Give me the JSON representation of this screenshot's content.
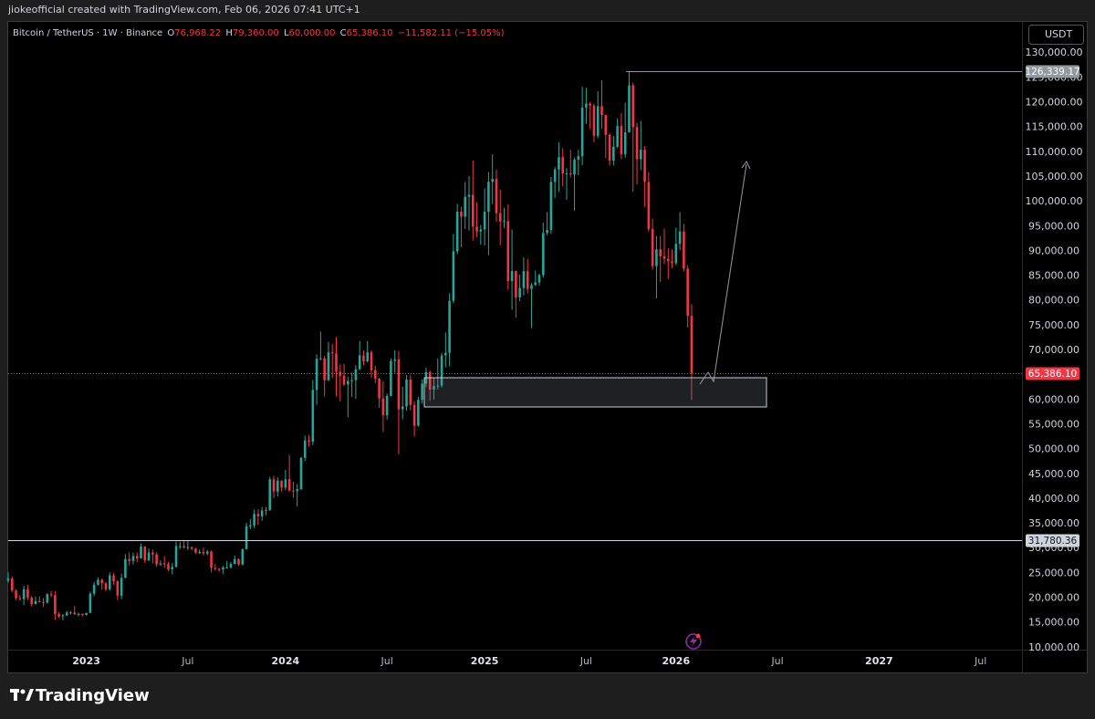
{
  "top_bar": {
    "credit": "jiokeofficial created with TradingView.com, Feb 06, 2026 07:41 UTC+1"
  },
  "legend": {
    "symbol": "Bitcoin / TetherUS · 1W · Binance",
    "o_label": "O",
    "open": "76,968.22",
    "h_label": "H",
    "high": "79,360.00",
    "l_label": "L",
    "low": "60,000.00",
    "c_label": "C",
    "close": "65,386.10",
    "change": "−11,582.11 (−15.05%)"
  },
  "currency": "USDT",
  "brand": "TradingView",
  "chart_data": {
    "type": "candlestick",
    "up_color": "#26a69a",
    "down_color": "#f23645",
    "grid": false,
    "xlim": [
      0,
      259.6
    ],
    "xticks": [
      {
        "value": 20,
        "label": "2023"
      },
      {
        "value": 46,
        "label": "Jul"
      },
      {
        "value": 71,
        "label": "2024"
      },
      {
        "value": 97,
        "label": "Jul"
      },
      {
        "value": 122,
        "label": "2025"
      },
      {
        "value": 148,
        "label": "Jul"
      },
      {
        "value": 171,
        "label": "2026"
      },
      {
        "value": 197,
        "label": "Jul"
      },
      {
        "value": 223,
        "label": "2027"
      },
      {
        "value": 249,
        "label": "Jul"
      }
    ],
    "ylim": [
      9600,
      136300
    ],
    "yticks": [
      {
        "value": 10000,
        "label": "10,000.00"
      },
      {
        "value": 15000,
        "label": "15,000.00"
      },
      {
        "value": 20000,
        "label": "20,000.00"
      },
      {
        "value": 25000,
        "label": "25,000.00"
      },
      {
        "value": 30000,
        "label": "30,000.00"
      },
      {
        "value": 35000,
        "label": "35,000.00"
      },
      {
        "value": 40000,
        "label": "40,000.00"
      },
      {
        "value": 45000,
        "label": "45,000.00"
      },
      {
        "value": 50000,
        "label": "50,000.00"
      },
      {
        "value": 55000,
        "label": "55,000.00"
      },
      {
        "value": 60000,
        "label": "60,000.00"
      },
      {
        "value": 65000,
        "label": "65,000.00"
      },
      {
        "value": 70000,
        "label": "70,000.00"
      },
      {
        "value": 75000,
        "label": "75,000.00"
      },
      {
        "value": 80000,
        "label": "80,000.00"
      },
      {
        "value": 85000,
        "label": "85,000.00"
      },
      {
        "value": 90000,
        "label": "90,000.00"
      },
      {
        "value": 95000,
        "label": "95,000.00"
      },
      {
        "value": 100000,
        "label": "100,000.00"
      },
      {
        "value": 105000,
        "label": "105,000.00"
      },
      {
        "value": 110000,
        "label": "110,000.00"
      },
      {
        "value": 115000,
        "label": "115,000.00"
      },
      {
        "value": 120000,
        "label": "120,000.00"
      },
      {
        "value": 125000,
        "label": "125,000.00"
      },
      {
        "value": 130000,
        "label": "130,000.00"
      }
    ],
    "price_lines": [
      {
        "value": 126339.17,
        "label": "126,339.17",
        "color": "#9598a1"
      },
      {
        "value": 65386.1,
        "label": "65,386.10",
        "color": "#f23645"
      },
      {
        "value": 31780.36,
        "label": "31,780.36",
        "color": "#d1d4dc"
      }
    ],
    "ohlc": [
      [
        23500,
        25200,
        23100,
        24000
      ],
      [
        24000,
        24400,
        21200,
        21500
      ],
      [
        21500,
        21800,
        19600,
        20000
      ],
      [
        20000,
        20600,
        19500,
        19800
      ],
      [
        19800,
        22500,
        18600,
        21800
      ],
      [
        21800,
        22700,
        19600,
        20100
      ],
      [
        20100,
        20400,
        18300,
        18800
      ],
      [
        18800,
        20300,
        18700,
        19400
      ],
      [
        19400,
        20400,
        19100,
        19200
      ],
      [
        19200,
        20000,
        18200,
        19100
      ],
      [
        19100,
        21000,
        18900,
        20800
      ],
      [
        20800,
        21500,
        20200,
        20600
      ],
      [
        20600,
        21400,
        15600,
        16800
      ],
      [
        16800,
        17200,
        16000,
        16300
      ],
      [
        16300,
        16800,
        15500,
        16500
      ],
      [
        16500,
        17400,
        16400,
        17100
      ],
      [
        17100,
        17400,
        16700,
        17100
      ],
      [
        17100,
        18400,
        16600,
        16800
      ],
      [
        16800,
        17100,
        16300,
        16800
      ],
      [
        16800,
        16900,
        16300,
        16600
      ],
      [
        16600,
        17100,
        16500,
        17000
      ],
      [
        17000,
        21300,
        17000,
        20900
      ],
      [
        20900,
        23300,
        20400,
        22700
      ],
      [
        22700,
        24200,
        22500,
        23700
      ],
      [
        23700,
        23900,
        21700,
        23000
      ],
      [
        23000,
        23300,
        21400,
        21800
      ],
      [
        21800,
        25200,
        21500,
        24600
      ],
      [
        24600,
        25100,
        22700,
        23400
      ],
      [
        23400,
        23600,
        19600,
        20500
      ],
      [
        20500,
        24900,
        19800,
        24100
      ],
      [
        24100,
        28900,
        24000,
        27900
      ],
      [
        27900,
        29200,
        26600,
        27500
      ],
      [
        27500,
        29200,
        26800,
        28500
      ],
      [
        28500,
        29200,
        27200,
        28000
      ],
      [
        28000,
        31000,
        28000,
        30400
      ],
      [
        30400,
        30500,
        27100,
        27600
      ],
      [
        27600,
        30000,
        27500,
        29200
      ],
      [
        29200,
        29800,
        27000,
        28800
      ],
      [
        28800,
        29300,
        26300,
        26800
      ],
      [
        26800,
        27600,
        26500,
        27000
      ],
      [
        27000,
        28400,
        26100,
        26900
      ],
      [
        26900,
        27300,
        25400,
        25800
      ],
      [
        25800,
        27100,
        24800,
        26300
      ],
      [
        26300,
        31400,
        26200,
        30500
      ],
      [
        30500,
        31400,
        29900,
        30500
      ],
      [
        30500,
        31800,
        30000,
        30200
      ],
      [
        30200,
        31600,
        29700,
        30300
      ],
      [
        30300,
        30400,
        29700,
        30000
      ],
      [
        30000,
        30100,
        28900,
        29200
      ],
      [
        29200,
        29800,
        28900,
        29300
      ],
      [
        29300,
        30200,
        28600,
        29000
      ],
      [
        29000,
        29700,
        28600,
        29400
      ],
      [
        29400,
        29600,
        25200,
        26100
      ],
      [
        26100,
        26900,
        25600,
        25900
      ],
      [
        25900,
        26100,
        25300,
        25800
      ],
      [
        25800,
        26500,
        24900,
        26200
      ],
      [
        26200,
        27500,
        26000,
        26200
      ],
      [
        26200,
        27300,
        26000,
        26900
      ],
      [
        26900,
        28600,
        26800,
        27900
      ],
      [
        27900,
        28000,
        26500,
        26800
      ],
      [
        26800,
        30000,
        26600,
        29900
      ],
      [
        29900,
        35200,
        29800,
        34500
      ],
      [
        34500,
        35900,
        33900,
        34700
      ],
      [
        34700,
        37900,
        34100,
        37000
      ],
      [
        37000,
        37900,
        34800,
        36500
      ],
      [
        36500,
        38400,
        35600,
        37700
      ],
      [
        37700,
        38400,
        36700,
        37800
      ],
      [
        37800,
        44500,
        37600,
        44000
      ],
      [
        44000,
        44700,
        40200,
        41500
      ],
      [
        41500,
        44400,
        40500,
        43700
      ],
      [
        43700,
        43800,
        41500,
        42300
      ],
      [
        42300,
        45900,
        41800,
        44000
      ],
      [
        44000,
        48900,
        41500,
        41700
      ],
      [
        41700,
        43500,
        40300,
        41600
      ],
      [
        41600,
        43000,
        38500,
        42000
      ],
      [
        42000,
        48500,
        41800,
        48300
      ],
      [
        48300,
        52800,
        47700,
        51800
      ],
      [
        51800,
        52900,
        50600,
        51600
      ],
      [
        51600,
        64000,
        50900,
        62000
      ],
      [
        62000,
        69200,
        59000,
        68300
      ],
      [
        68300,
        73800,
        68000,
        68400
      ],
      [
        68400,
        68900,
        60700,
        64000
      ],
      [
        64000,
        71700,
        63800,
        69600
      ],
      [
        69600,
        71300,
        64500,
        69400
      ],
      [
        69400,
        72700,
        60700,
        65700
      ],
      [
        65700,
        67200,
        59700,
        64900
      ],
      [
        64900,
        67300,
        62800,
        63100
      ],
      [
        63100,
        64700,
        56500,
        63800
      ],
      [
        63800,
        65500,
        60600,
        64000
      ],
      [
        64000,
        67000,
        60200,
        66200
      ],
      [
        66200,
        71900,
        66000,
        69000
      ],
      [
        69000,
        70000,
        67000,
        67800
      ],
      [
        67800,
        71900,
        67600,
        69600
      ],
      [
        69600,
        70000,
        64500,
        66000
      ],
      [
        66000,
        66900,
        63400,
        64300
      ],
      [
        64300,
        64500,
        58400,
        60300
      ],
      [
        60300,
        63800,
        53500,
        56900
      ],
      [
        56900,
        61300,
        56000,
        60800
      ],
      [
        60800,
        68400,
        60700,
        67900
      ],
      [
        67900,
        70000,
        65500,
        68200
      ],
      [
        68200,
        69900,
        49000,
        58100
      ],
      [
        58100,
        62700,
        56100,
        58700
      ],
      [
        58700,
        65000,
        57800,
        64100
      ],
      [
        64100,
        65000,
        57900,
        59000
      ],
      [
        59000,
        59800,
        52600,
        54800
      ],
      [
        54800,
        60700,
        54600,
        60000
      ],
      [
        60000,
        64100,
        59200,
        63300
      ],
      [
        63300,
        66500,
        62600,
        65600
      ],
      [
        65600,
        66000,
        59800,
        62100
      ],
      [
        62100,
        64400,
        60100,
        62800
      ],
      [
        62800,
        68400,
        62100,
        62900
      ],
      [
        62900,
        69500,
        62500,
        69000
      ],
      [
        69000,
        73600,
        66600,
        69500
      ],
      [
        69500,
        81500,
        66800,
        80000
      ],
      [
        80000,
        93500,
        79500,
        90000
      ],
      [
        90000,
        99600,
        89400,
        98000
      ],
      [
        98000,
        99000,
        90800,
        97000
      ],
      [
        97000,
        104000,
        94500,
        101000
      ],
      [
        101000,
        105200,
        94200,
        101400
      ],
      [
        101400,
        108300,
        92200,
        95000
      ],
      [
        95000,
        99900,
        92800,
        94000
      ],
      [
        94000,
        95300,
        91300,
        94400
      ],
      [
        94400,
        102700,
        91200,
        98000
      ],
      [
        98000,
        106000,
        89200,
        104000
      ],
      [
        104000,
        109600,
        99500,
        104600
      ],
      [
        104600,
        106500,
        96000,
        97700
      ],
      [
        97700,
        102500,
        91200,
        96000
      ],
      [
        96000,
        98800,
        94700,
        96100
      ],
      [
        96100,
        99500,
        82200,
        84000
      ],
      [
        84000,
        94400,
        78200,
        86000
      ],
      [
        86000,
        86100,
        76600,
        80700
      ],
      [
        80700,
        85300,
        79900,
        82600
      ],
      [
        82600,
        88800,
        81100,
        86000
      ],
      [
        86000,
        88500,
        81500,
        82400
      ],
      [
        82400,
        83600,
        74500,
        83200
      ],
      [
        83200,
        86100,
        83000,
        83700
      ],
      [
        83700,
        85500,
        83100,
        85200
      ],
      [
        85200,
        95800,
        84700,
        93700
      ],
      [
        93700,
        97900,
        93200,
        94300
      ],
      [
        94300,
        105000,
        93500,
        104000
      ],
      [
        104000,
        107000,
        100800,
        106500
      ],
      [
        106500,
        112000,
        102000,
        109000
      ],
      [
        109000,
        110800,
        103100,
        105700
      ],
      [
        105700,
        106800,
        100400,
        105700
      ],
      [
        105700,
        110500,
        104900,
        105500
      ],
      [
        105500,
        108900,
        98200,
        108500
      ],
      [
        108500,
        110500,
        105300,
        109200
      ],
      [
        109200,
        123200,
        107400,
        119000
      ],
      [
        119000,
        123000,
        115700,
        119800
      ],
      [
        119800,
        120200,
        114700,
        119400
      ],
      [
        119400,
        119800,
        112000,
        113300
      ],
      [
        113300,
        122300,
        112800,
        119300
      ],
      [
        119300,
        124500,
        114700,
        117500
      ],
      [
        117500,
        117600,
        108800,
        113500
      ],
      [
        113500,
        113800,
        107300,
        108300
      ],
      [
        108300,
        113300,
        107300,
        111100
      ],
      [
        111100,
        116800,
        110800,
        115300
      ],
      [
        115300,
        117900,
        108600,
        109600
      ],
      [
        109600,
        120000,
        108900,
        114000
      ],
      [
        114000,
        126339.17,
        114000,
        123500
      ],
      [
        123500,
        124000,
        102000,
        115100
      ],
      [
        115100,
        116000,
        103500,
        108600
      ],
      [
        108600,
        116300,
        106400,
        110500
      ],
      [
        110500,
        111200,
        99000,
        104000
      ],
      [
        104000,
        106000,
        94000,
        94500
      ],
      [
        94500,
        96600,
        86300,
        87000
      ],
      [
        87000,
        93100,
        80500,
        90400
      ],
      [
        90400,
        93100,
        83800,
        89000
      ],
      [
        89000,
        94600,
        87400,
        88500
      ],
      [
        88500,
        90600,
        84400,
        88000
      ],
      [
        88000,
        90400,
        86600,
        87600
      ],
      [
        87600,
        94800,
        87200,
        91500
      ],
      [
        91500,
        97900,
        90200,
        94000
      ],
      [
        94000,
        95500,
        86000,
        86500
      ],
      [
        86500,
        87200,
        74600,
        76968.22
      ],
      [
        76968.22,
        79360,
        60000,
        65386.1
      ]
    ]
  }
}
